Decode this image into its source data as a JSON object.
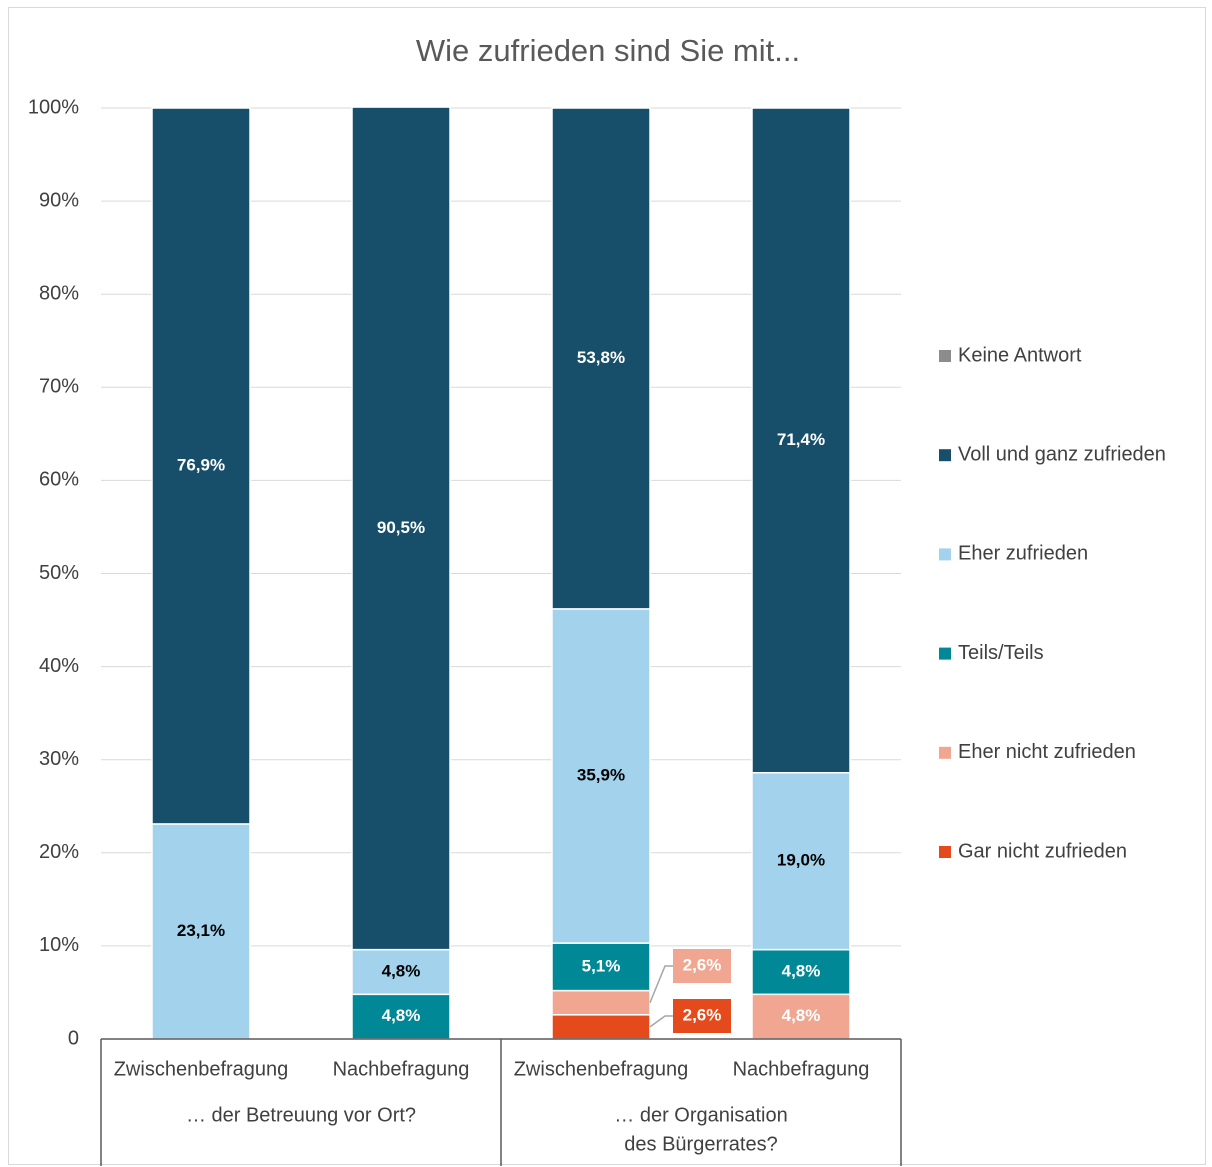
{
  "chart_data": {
    "type": "bar",
    "stacked": true,
    "title": "Wie zufrieden sind Sie mit...",
    "yticks": [
      "0",
      "10%",
      "20%",
      "30%",
      "40%",
      "50%",
      "60%",
      "70%",
      "80%",
      "90%",
      "100%"
    ],
    "ylim": [
      0,
      100
    ],
    "grid": true,
    "legend_position": "right",
    "categories": [
      "Zwischenbefragung",
      "Nachbefragung",
      "Zwischenbefragung",
      "Nachbefragung"
    ],
    "groups": [
      {
        "label_lines": [
          "… der Betreuung vor Ort?"
        ],
        "categories": [
          0,
          1
        ]
      },
      {
        "label_lines": [
          "… der Organisation",
          "des Bürgerrates?"
        ],
        "categories": [
          2,
          3
        ]
      }
    ],
    "series": [
      {
        "name": "Gar nicht zufrieden",
        "color": "#e44a1b",
        "values": [
          0,
          0,
          2.6,
          0
        ],
        "labels": [
          "",
          "",
          "2,6%",
          ""
        ],
        "label_color": "#ffffff"
      },
      {
        "name": "Eher nicht zufrieden",
        "color": "#f0a690",
        "values": [
          0,
          0,
          2.6,
          4.8
        ],
        "labels": [
          "",
          "",
          "2,6%",
          "4,8%"
        ],
        "label_color": "#ffffff"
      },
      {
        "name": "Teils/Teils",
        "color": "#008896",
        "values": [
          0,
          4.8,
          5.1,
          4.8
        ],
        "labels": [
          "",
          "4,8%",
          "5,1%",
          "4,8%"
        ],
        "label_color": "#ffffff"
      },
      {
        "name": "Eher zufrieden",
        "color": "#a2d2ec",
        "values": [
          23.1,
          4.8,
          35.9,
          19.0
        ],
        "labels": [
          "23,1%",
          "4,8%",
          "35,9%",
          "19,0%"
        ],
        "label_color": "#000000"
      },
      {
        "name": "Voll und ganz zufrieden",
        "color": "#174e69",
        "values": [
          76.9,
          90.5,
          53.8,
          71.4
        ],
        "labels": [
          "76,9%",
          "90,5%",
          "53,8%",
          "71,4%"
        ],
        "label_color": "#ffffff"
      },
      {
        "name": "Keine Antwort",
        "color": "#8c8c8c",
        "values": [
          0,
          0,
          0,
          0
        ],
        "labels": [
          "",
          "",
          "",
          ""
        ],
        "label_color": "#ffffff"
      }
    ],
    "callouts": [
      {
        "category": 2,
        "series": 1,
        "text": "2,6%"
      },
      {
        "category": 2,
        "series": 0,
        "text": "2,6%"
      }
    ]
  }
}
